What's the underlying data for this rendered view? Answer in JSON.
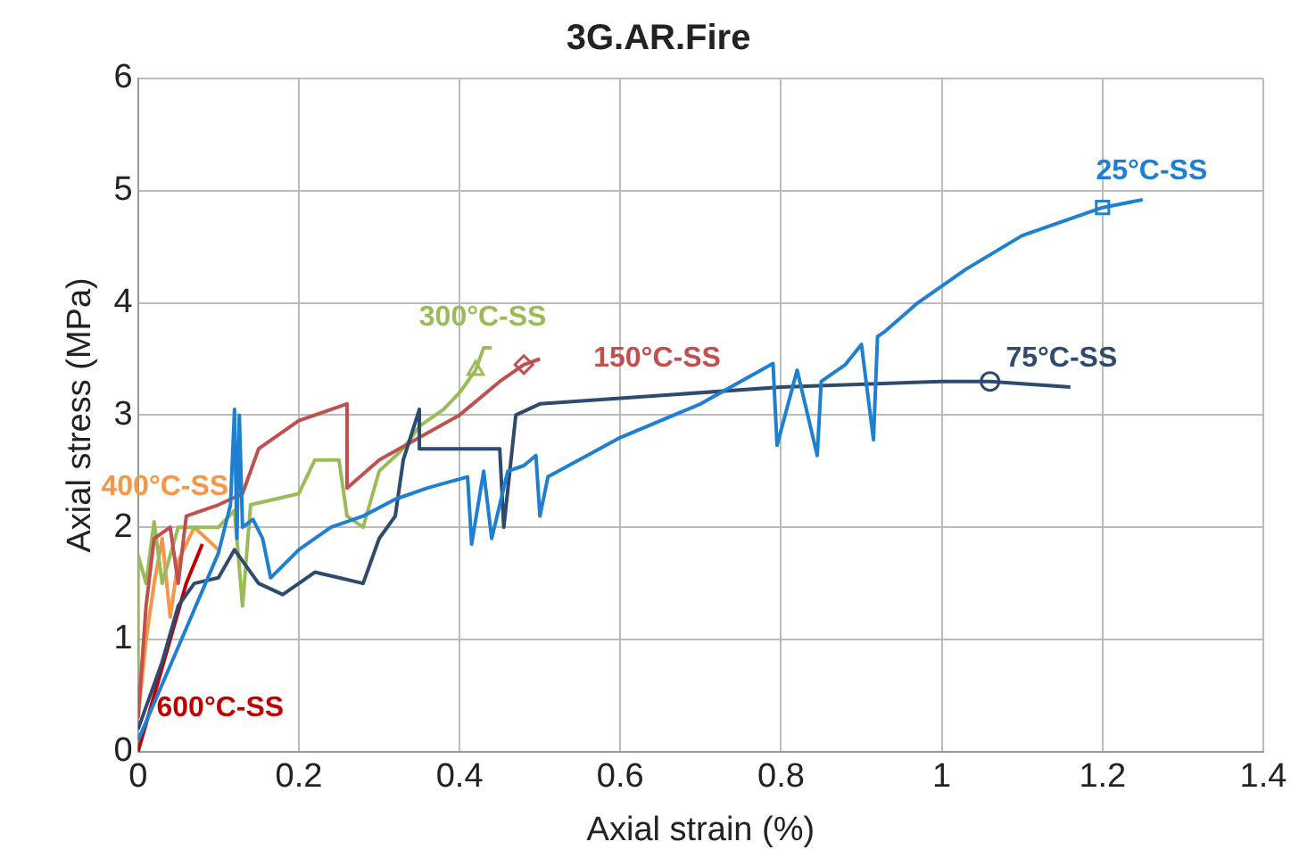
{
  "chart_data": {
    "type": "line",
    "title": "3G.AR.Fire",
    "xlabel": "Axial strain (%)",
    "ylabel": "Axial stress (MPa)",
    "xlim": [
      0,
      1.4
    ],
    "xticks": [
      0,
      0.2,
      0.4,
      0.6,
      0.8,
      1,
      1.2,
      1.4
    ],
    "ylim": [
      0,
      6
    ],
    "yticks": [
      0,
      1,
      2,
      3,
      4,
      5,
      6
    ],
    "grid": true,
    "legend": false,
    "line_style": "solid",
    "marker": "none",
    "series": [
      {
        "name": "25°C-SS",
        "color": "#1f7fd0",
        "x": [
          0,
          0.03,
          0.06,
          0.1,
          0.115,
          0.12,
          0.123,
          0.126,
          0.13,
          0.143,
          0.155,
          0.165,
          0.2,
          0.24,
          0.28,
          0.32,
          0.36,
          0.41,
          0.415,
          0.43,
          0.44,
          0.46,
          0.48,
          0.495,
          0.5,
          0.51,
          0.6,
          0.7,
          0.79,
          0.795,
          0.82,
          0.845,
          0.85,
          0.88,
          0.9,
          0.915,
          0.92,
          0.93,
          0.97,
          1.03,
          1.1,
          1.2,
          1.25
        ],
        "values": [
          0.1,
          0.6,
          1.1,
          1.77,
          2.2,
          3.05,
          1.9,
          3.0,
          2.0,
          2.07,
          1.9,
          1.55,
          1.8,
          2.0,
          2.1,
          2.25,
          2.35,
          2.45,
          1.85,
          2.5,
          1.9,
          2.5,
          2.55,
          2.64,
          2.1,
          2.45,
          2.8,
          3.1,
          3.46,
          2.73,
          3.4,
          2.64,
          3.3,
          3.45,
          3.63,
          2.78,
          3.7,
          3.75,
          4.0,
          4.3,
          4.6,
          4.85,
          4.92
        ]
      },
      {
        "name": "75°C-SS",
        "color": "#2e4a6e",
        "x": [
          0,
          0.03,
          0.05,
          0.07,
          0.1,
          0.12,
          0.15,
          0.18,
          0.22,
          0.25,
          0.28,
          0.3,
          0.32,
          0.33,
          0.35,
          0.35,
          0.4,
          0.45,
          0.455,
          0.47,
          0.5,
          0.6,
          0.8,
          1,
          1.06,
          1.16
        ],
        "values": [
          0.2,
          0.8,
          1.3,
          1.5,
          1.55,
          1.8,
          1.5,
          1.4,
          1.6,
          1.55,
          1.5,
          1.9,
          2.1,
          2.6,
          3.05,
          2.7,
          2.7,
          2.7,
          2.0,
          3.0,
          3.1,
          3.15,
          3.25,
          3.3,
          3.3,
          3.25
        ]
      },
      {
        "name": "150°C-SS",
        "color": "#c0504d",
        "x": [
          0,
          0.01,
          0.02,
          0.04,
          0.05,
          0.06,
          0.1,
          0.13,
          0.15,
          0.2,
          0.26,
          0.26,
          0.3,
          0.35,
          0.4,
          0.45,
          0.48,
          0.5
        ],
        "values": [
          0.3,
          1.3,
          1.9,
          2.0,
          1.5,
          2.1,
          2.2,
          2.3,
          2.7,
          2.95,
          3.1,
          2.35,
          2.6,
          2.8,
          3.0,
          3.3,
          3.45,
          3.5
        ]
      },
      {
        "name": "300°C-SS",
        "color": "#9bbb59",
        "x": [
          0,
          0,
          0.01,
          0.02,
          0.03,
          0.05,
          0.1,
          0.12,
          0.13,
          0.14,
          0.2,
          0.22,
          0.25,
          0.26,
          0.28,
          0.3,
          0.33,
          0.35,
          0.38,
          0.4,
          0.42,
          0.43,
          0.44
        ],
        "values": [
          0.4,
          1.75,
          1.5,
          2.05,
          1.5,
          2.0,
          2.0,
          2.15,
          1.3,
          2.2,
          2.3,
          2.6,
          2.6,
          2.1,
          2.0,
          2.5,
          2.7,
          2.9,
          3.05,
          3.2,
          3.4,
          3.6,
          3.6
        ]
      },
      {
        "name": "400°C-SS",
        "color": "#f79646",
        "x": [
          0,
          0.01,
          0.02,
          0.03,
          0.04,
          0.05,
          0.07,
          0.1
        ],
        "values": [
          0.3,
          1.0,
          1.5,
          1.9,
          1.2,
          1.7,
          2.0,
          1.8
        ]
      },
      {
        "name": "600°C-SS",
        "color": "#c00000",
        "x": [
          0,
          0.02,
          0.04,
          0.06,
          0.08
        ],
        "values": [
          0,
          0.5,
          1.0,
          1.5,
          1.85
        ]
      },
      {
        "type": "scatter",
        "color": "#1f7fd0",
        "marker": "square",
        "x": [
          1.2
        ],
        "values": [
          4.85
        ]
      },
      {
        "type": "scatter",
        "color": "#2e4a6e",
        "marker": "circle",
        "x": [
          1.06
        ],
        "values": [
          3.3
        ]
      },
      {
        "type": "scatter",
        "color": "#c0504d",
        "marker": "diamond",
        "x": [
          0.48
        ],
        "values": [
          3.45
        ]
      },
      {
        "type": "scatter",
        "color": "#9bbb59",
        "marker": "triangle",
        "x": [
          0.42
        ],
        "values": [
          3.4
        ]
      }
    ]
  }
}
